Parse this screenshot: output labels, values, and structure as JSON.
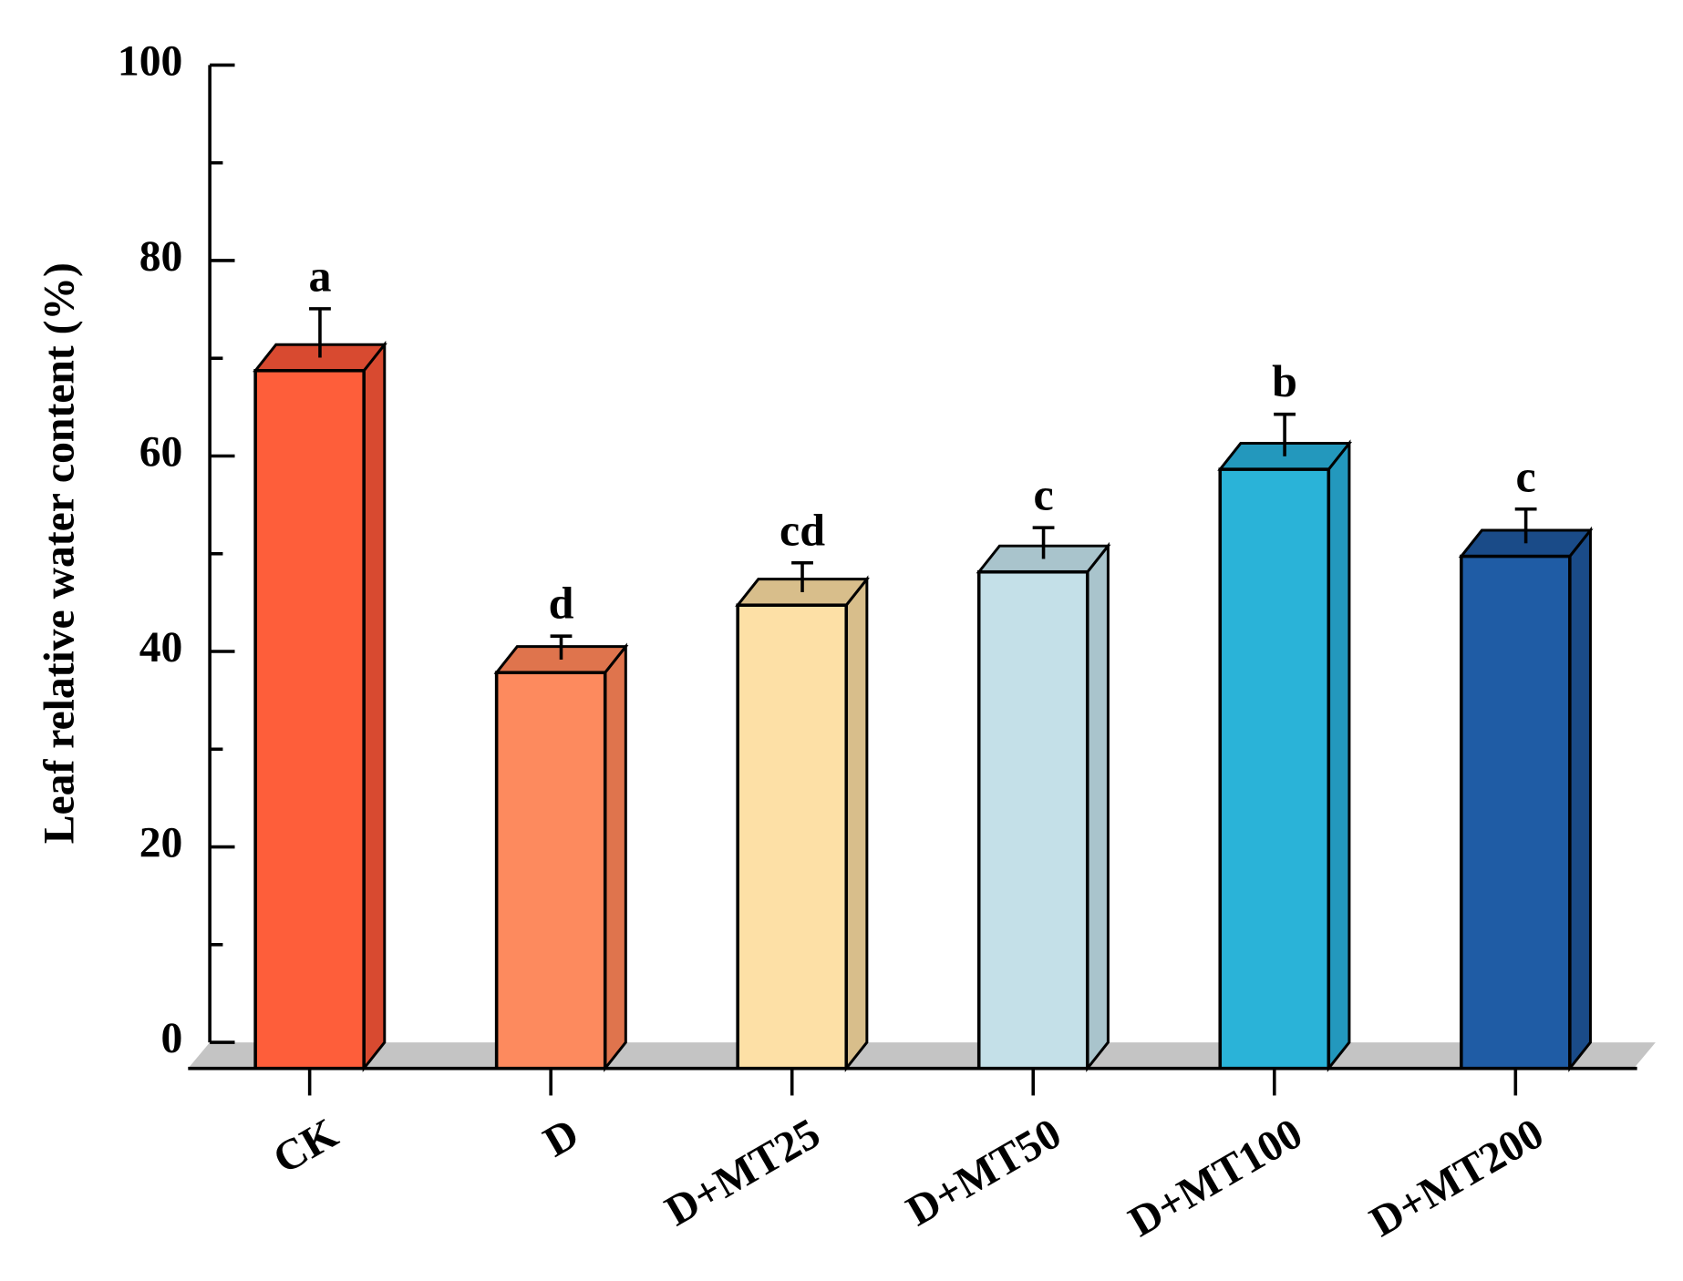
{
  "chart_data": {
    "type": "bar3d",
    "y_label": "Leaf relative water content (%)",
    "categories": [
      "CK",
      "D",
      "D+MT25",
      "D+MT50",
      "D+MT100",
      "D+MT200"
    ],
    "values": [
      71.4,
      40.5,
      47.4,
      50.8,
      61.3,
      52.4
    ],
    "errors": [
      5.0,
      2.4,
      3.0,
      3.2,
      4.3,
      3.5
    ],
    "letters": [
      "a",
      "d",
      "cd",
      "c",
      "b",
      "c"
    ],
    "colors": [
      "#fe5e3a",
      "#fd8a5e",
      "#fde0a6",
      "#c4e0e8",
      "#2ab3d8",
      "#1f5ca5"
    ],
    "side_colors": [
      "#d84a30",
      "#df744d",
      "#d8be8b",
      "#a9c4cc",
      "#2398bd",
      "#1a4b88"
    ],
    "ylim": [
      0,
      100
    ],
    "yticks": [
      0,
      20,
      40,
      60,
      80,
      100
    ],
    "minor_yticks": [
      10,
      30,
      50,
      70,
      90
    ]
  }
}
